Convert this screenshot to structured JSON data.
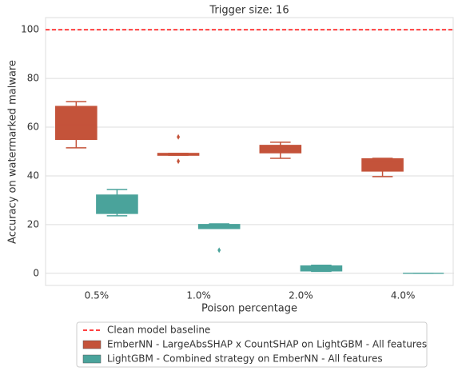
{
  "chart_data": {
    "type": "box",
    "title": "Trigger size: 16",
    "x_label": "Poison percentage",
    "y_label": "Accuracy on watermarked malware",
    "categories": [
      "0.5%",
      "1.0%",
      "2.0%",
      "4.0%"
    ],
    "ylim": [
      -5,
      105
    ],
    "yticks": [
      0,
      20,
      40,
      60,
      80,
      100
    ],
    "grid": true,
    "baseline": {
      "value": 100,
      "label": "Clean model baseline",
      "color": "#ff0000"
    },
    "series": [
      {
        "name": "EmberNN - LargeAbsSHAP x CountSHAP on LightGBM - All features",
        "color": "#c4533a",
        "boxes": [
          {
            "min": 51.5,
            "q1": 55,
            "median": 61,
            "q3": 68.5,
            "max": 70.5,
            "outliers": []
          },
          {
            "min": 48.5,
            "q1": 48.5,
            "median": 48.8,
            "q3": 49.2,
            "max": 49.2,
            "outliers": [
              56,
              46
            ]
          },
          {
            "min": 47.2,
            "q1": 49.5,
            "median": 51,
            "q3": 52.5,
            "max": 53.8,
            "outliers": []
          },
          {
            "min": 39.7,
            "q1": 42,
            "median": 46,
            "q3": 47,
            "max": 47.2,
            "outliers": []
          }
        ]
      },
      {
        "name": "LightGBM - Combined strategy on EmberNN - All features",
        "color": "#4aa39b",
        "boxes": [
          {
            "min": 23.6,
            "q1": 24.6,
            "median": 27,
            "q3": 32.1,
            "max": 34.4,
            "outliers": []
          },
          {
            "min": 18.4,
            "q1": 18.4,
            "median": 19.2,
            "q3": 20,
            "max": 20.3,
            "outliers": [
              9.5
            ]
          },
          {
            "min": 0.8,
            "q1": 1,
            "median": 2,
            "q3": 3,
            "max": 3.3,
            "outliers": []
          },
          {
            "min": 0,
            "q1": 0,
            "median": 0,
            "q3": 0,
            "max": 0,
            "outliers": []
          }
        ]
      }
    ]
  }
}
